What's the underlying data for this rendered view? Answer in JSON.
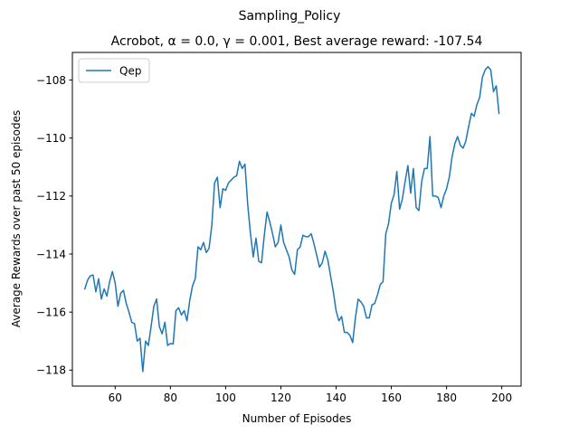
{
  "chart_data": {
    "type": "line",
    "suptitle": "Sampling_Policy",
    "title": "Acrobot, α = 0.0, γ = 0.001,  Best average reward: -107.54",
    "xlabel": "Number of Episodes",
    "ylabel": "Average Rewards over past 50 episodes",
    "xlim": [
      44.5,
      207
    ],
    "ylim": [
      -118.55,
      -107.05
    ],
    "xticks": [
      60,
      80,
      100,
      120,
      140,
      160,
      180,
      200
    ],
    "yticks": [
      -118,
      -116,
      -114,
      -112,
      -110,
      -108
    ],
    "grid": false,
    "legend": {
      "position": "top-left"
    },
    "series": [
      {
        "name": "Qep",
        "color": "#1f77b4",
        "x_start": 49,
        "x_step": 1,
        "values": [
          -115.2,
          -114.9,
          -114.75,
          -114.72,
          -115.3,
          -114.85,
          -115.55,
          -115.2,
          -115.45,
          -114.95,
          -114.6,
          -115.0,
          -115.8,
          -115.35,
          -115.25,
          -115.7,
          -116.0,
          -116.35,
          -116.4,
          -117.0,
          -116.9,
          -118.05,
          -117.0,
          -117.15,
          -116.5,
          -115.8,
          -115.55,
          -116.5,
          -116.75,
          -116.35,
          -117.15,
          -117.08,
          -117.1,
          -115.95,
          -115.85,
          -116.1,
          -115.95,
          -116.3,
          -115.6,
          -115.1,
          -114.85,
          -113.75,
          -113.85,
          -113.6,
          -113.95,
          -113.8,
          -113.0,
          -111.55,
          -111.35,
          -112.4,
          -111.75,
          -111.8,
          -111.55,
          -111.45,
          -111.35,
          -111.3,
          -110.8,
          -111.05,
          -110.9,
          -112.3,
          -113.3,
          -114.1,
          -113.45,
          -114.25,
          -114.3,
          -113.35,
          -112.55,
          -112.9,
          -113.3,
          -113.75,
          -113.6,
          -113.0,
          -113.6,
          -113.85,
          -114.1,
          -114.55,
          -114.7,
          -113.85,
          -113.75,
          -113.35,
          -113.4,
          -113.4,
          -113.3,
          -113.65,
          -114.05,
          -114.45,
          -114.3,
          -113.9,
          -114.2,
          -114.75,
          -115.3,
          -115.95,
          -116.3,
          -116.15,
          -116.7,
          -116.7,
          -116.8,
          -117.05,
          -116.2,
          -115.55,
          -115.65,
          -115.8,
          -116.2,
          -116.2,
          -115.75,
          -115.7,
          -115.4,
          -115.05,
          -114.95,
          -113.3,
          -112.95,
          -112.25,
          -111.95,
          -111.15,
          -112.45,
          -112.1,
          -111.5,
          -110.95,
          -111.9,
          -111.05,
          -112.4,
          -112.5,
          -111.5,
          -111.05,
          -111.05,
          -109.95,
          -112.0,
          -112.0,
          -112.05,
          -112.4,
          -112.0,
          -111.75,
          -111.35,
          -110.65,
          -110.2,
          -109.95,
          -110.25,
          -110.35,
          -110.1,
          -109.6,
          -109.15,
          -109.25,
          -108.85,
          -108.6,
          -107.9,
          -107.65,
          -107.54,
          -107.65,
          -108.4,
          -108.2,
          -109.15
        ]
      }
    ]
  }
}
